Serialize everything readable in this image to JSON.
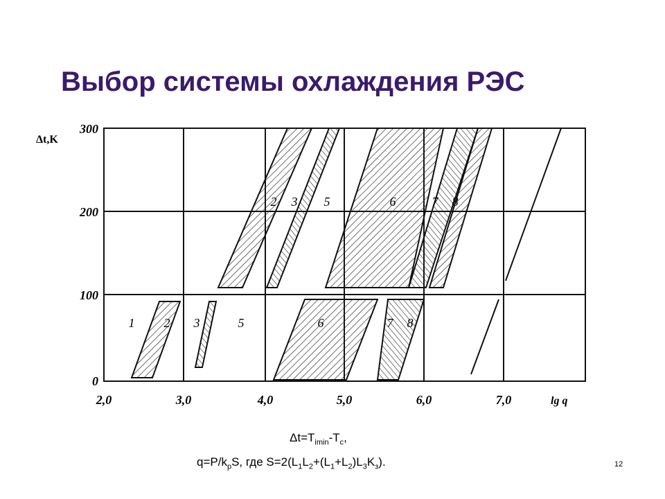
{
  "header": {
    "title": "Выбор системы охлаждения РЭС"
  },
  "diagram": {
    "y_axis_label": "Δt,K",
    "x_axis_label": "lg q",
    "y_ticks": [
      "300",
      "200",
      "100",
      "0"
    ],
    "x_ticks": [
      "2,0",
      "3,0",
      "4,0",
      "5,0",
      "6,0",
      "7,0"
    ],
    "upper_zones": [
      "2",
      "3",
      "5",
      "6",
      "7",
      "8"
    ],
    "lower_zones": [
      "1",
      "2",
      "3",
      "5",
      "6",
      "7",
      "8"
    ]
  },
  "formulas": [
    [
      {
        "text": "Δt=T"
      },
      {
        "sub": "imin"
      },
      {
        "text": "-T"
      },
      {
        "sub": "c"
      },
      {
        "text": ","
      }
    ],
    [
      {
        "text": "q=P/k"
      },
      {
        "sub": "p"
      },
      {
        "text": "S, где S=2(L"
      },
      {
        "sub": "1"
      },
      {
        "text": "L"
      },
      {
        "sub": "2"
      },
      {
        "text": "+(L"
      },
      {
        "sub": "1"
      },
      {
        "text": "+L"
      },
      {
        "sub": "2"
      },
      {
        "text": ")L"
      },
      {
        "sub": "3"
      },
      {
        "text": "K"
      },
      {
        "sub": "з"
      },
      {
        "text": ")."
      }
    ]
  ],
  "page_number": "12"
}
